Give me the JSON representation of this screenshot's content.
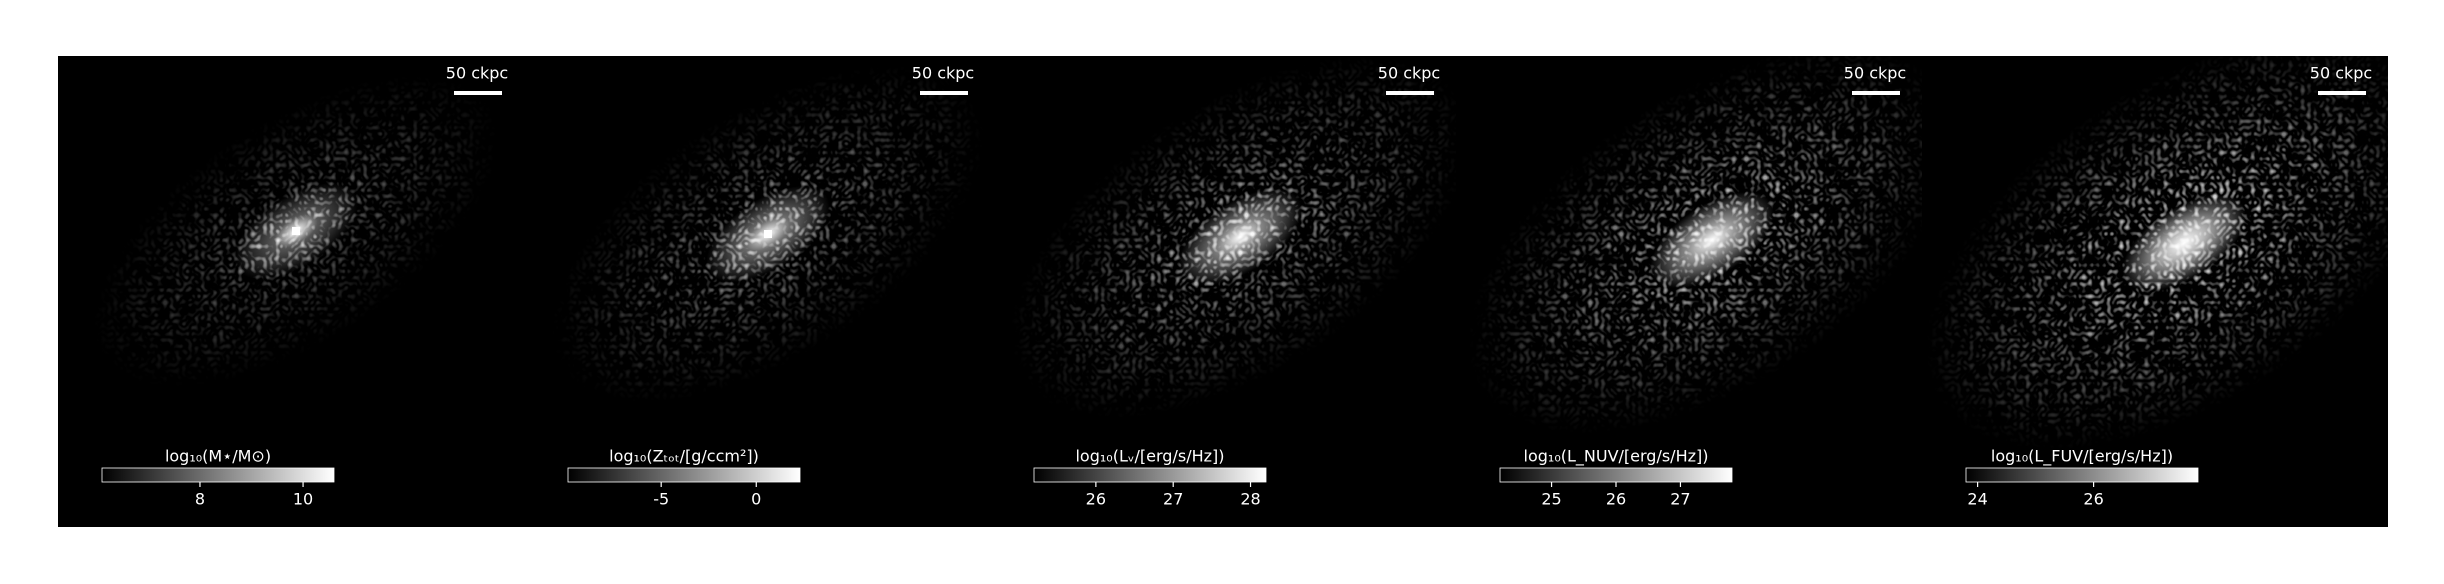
{
  "chart_data": [
    {
      "type": "image",
      "scale_bar_label": "50 ckpc",
      "colorbar_label": "log₁₀(M⋆/M⊙)",
      "clim": [
        6.1,
        10.6
      ],
      "cticks": [
        8,
        10
      ]
    },
    {
      "type": "image",
      "scale_bar_label": "50 ckpc",
      "colorbar_label": "log₁₀(Zₜₒₜ/[g/ccm²])",
      "clim": [
        -9.9,
        2.3
      ],
      "cticks": [
        -5,
        0
      ]
    },
    {
      "type": "image",
      "scale_bar_label": "50 ckpc",
      "colorbar_label": "log₁₀(Lᵥ/[erg/s/Hz])",
      "clim": [
        25.2,
        28.2
      ],
      "cticks": [
        26,
        27,
        28
      ]
    },
    {
      "type": "image",
      "scale_bar_label": "50 ckpc",
      "colorbar_label": "log₁₀(L_NUV/[erg/s/Hz])",
      "clim": [
        24.2,
        27.8
      ],
      "cticks": [
        25,
        26,
        27
      ]
    },
    {
      "type": "image",
      "scale_bar_label": "50 ckpc",
      "colorbar_label": "log₁₀(L_FUV/[erg/s/Hz])",
      "clim": [
        23.8,
        27.8
      ],
      "cticks": [
        24,
        26
      ]
    }
  ]
}
